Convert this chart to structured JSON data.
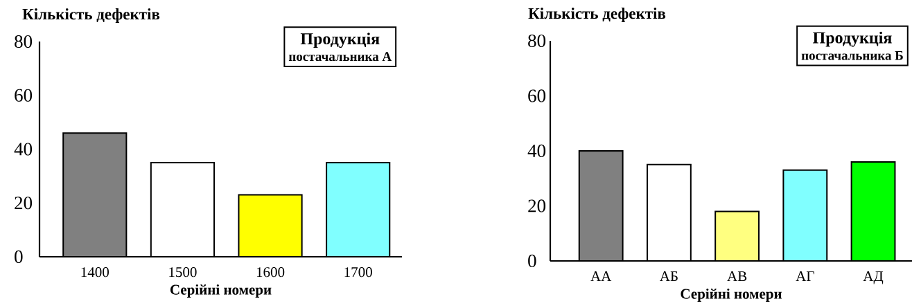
{
  "chart_data": [
    {
      "type": "bar",
      "ylabel": "Кількість дефектів",
      "xlabel": "Серійні номери",
      "categories": [
        "1400",
        "1500",
        "1600",
        "1700"
      ],
      "values": [
        46,
        35,
        23,
        35
      ],
      "colors": [
        "#808080",
        "#ffffff",
        "#ffff00",
        "#80ffff"
      ],
      "ylim": [
        0,
        80
      ],
      "yticks": [
        0,
        20,
        40,
        60,
        80
      ],
      "annotations": [
        "Продукція",
        "постачальника А"
      ]
    },
    {
      "type": "bar",
      "ylabel": "Кількість дефектів",
      "xlabel": "Серійні номери",
      "categories": [
        "АА",
        "АБ",
        "АВ",
        "АГ",
        "АД"
      ],
      "values": [
        40,
        35,
        18,
        33,
        36
      ],
      "colors": [
        "#808080",
        "#ffffff",
        "#ffff80",
        "#80ffff",
        "#00ff00"
      ],
      "ylim": [
        0,
        80
      ],
      "yticks": [
        0,
        20,
        40,
        60,
        80
      ],
      "annotations": [
        "Продукція",
        "постачальника Б"
      ]
    }
  ]
}
